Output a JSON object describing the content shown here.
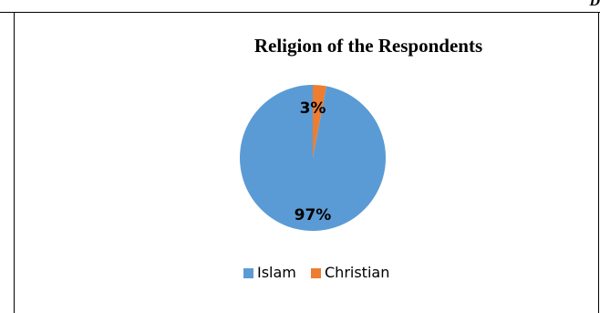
{
  "page": {
    "corner_text": "D"
  },
  "colors": {
    "islam": "#5B9BD5",
    "christian": "#ED7D31",
    "frame": "#000000"
  },
  "chart_data": {
    "type": "pie",
    "title": "Religion of the Respondents",
    "categories": [
      "Islam",
      "Christian"
    ],
    "values": [
      97,
      3
    ],
    "unit": "%",
    "data_labels": [
      "97%",
      "3%"
    ],
    "legend": {
      "position": "bottom",
      "entries": [
        "Islam",
        "Christian"
      ]
    }
  }
}
